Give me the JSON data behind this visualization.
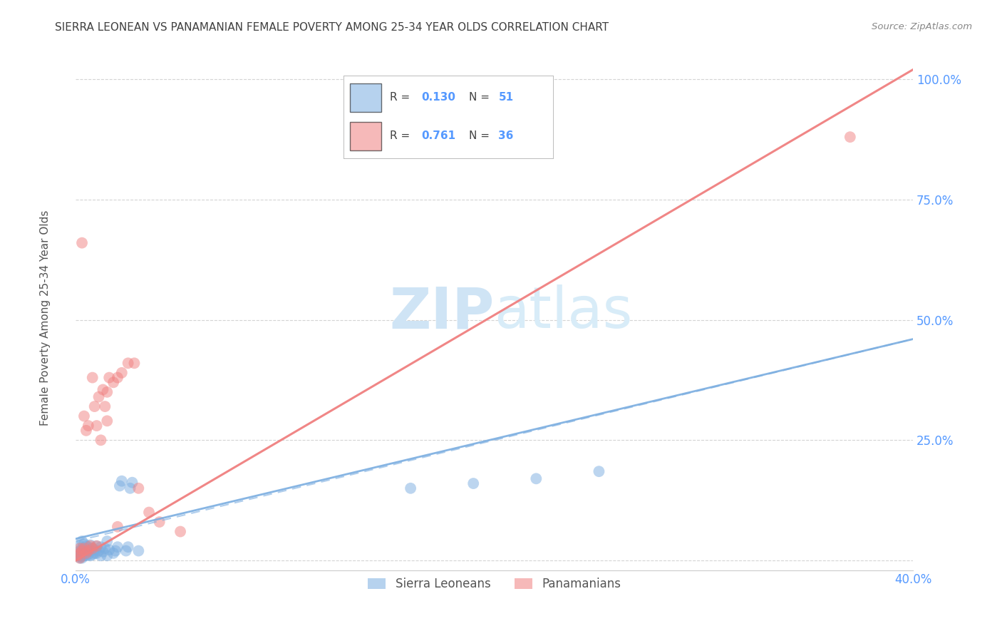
{
  "title": "SIERRA LEONEAN VS PANAMANIAN FEMALE POVERTY AMONG 25-34 YEAR OLDS CORRELATION CHART",
  "source": "Source: ZipAtlas.com",
  "ylabel": "Female Poverty Among 25-34 Year Olds",
  "xlim": [
    0.0,
    0.4
  ],
  "ylim": [
    -0.02,
    1.05
  ],
  "x_ticks": [
    0.0,
    0.1,
    0.2,
    0.3,
    0.4
  ],
  "x_tick_labels": [
    "0.0%",
    "",
    "",
    "",
    "40.0%"
  ],
  "y_ticks": [
    0.0,
    0.25,
    0.5,
    0.75,
    1.0
  ],
  "y_tick_labels": [
    "",
    "25.0%",
    "50.0%",
    "75.0%",
    "100.0%"
  ],
  "background_color": "#ffffff",
  "grid_color": "#d0d0d0",
  "blue_color": "#7aade0",
  "pink_color": "#f08080",
  "axis_label_color": "#5599ff",
  "title_color": "#404040",
  "watermark_zip_color": "#cde0f5",
  "watermark_atlas_color": "#d8e8f8",
  "sl_x": [
    0.001,
    0.002,
    0.002,
    0.002,
    0.002,
    0.002,
    0.003,
    0.003,
    0.003,
    0.003,
    0.003,
    0.003,
    0.004,
    0.004,
    0.004,
    0.005,
    0.005,
    0.005,
    0.006,
    0.006,
    0.007,
    0.007,
    0.007,
    0.008,
    0.008,
    0.009,
    0.009,
    0.01,
    0.01,
    0.011,
    0.012,
    0.012,
    0.013,
    0.014,
    0.015,
    0.015,
    0.016,
    0.018,
    0.019,
    0.02,
    0.021,
    0.022,
    0.024,
    0.025,
    0.026,
    0.027,
    0.03,
    0.16,
    0.19,
    0.22,
    0.25
  ],
  "sl_y": [
    0.01,
    0.005,
    0.008,
    0.012,
    0.02,
    0.03,
    0.005,
    0.008,
    0.015,
    0.02,
    0.025,
    0.04,
    0.01,
    0.02,
    0.035,
    0.01,
    0.018,
    0.03,
    0.012,
    0.028,
    0.01,
    0.02,
    0.032,
    0.012,
    0.025,
    0.015,
    0.022,
    0.015,
    0.03,
    0.02,
    0.01,
    0.028,
    0.018,
    0.025,
    0.01,
    0.04,
    0.022,
    0.015,
    0.02,
    0.028,
    0.155,
    0.165,
    0.02,
    0.028,
    0.15,
    0.162,
    0.02,
    0.15,
    0.16,
    0.17,
    0.185
  ],
  "pan_x": [
    0.001,
    0.002,
    0.002,
    0.003,
    0.004,
    0.004,
    0.005,
    0.005,
    0.006,
    0.007,
    0.008,
    0.009,
    0.01,
    0.011,
    0.012,
    0.013,
    0.014,
    0.015,
    0.016,
    0.018,
    0.02,
    0.022,
    0.025,
    0.028,
    0.03,
    0.035,
    0.04,
    0.05,
    0.002,
    0.003,
    0.006,
    0.008,
    0.01,
    0.015,
    0.02,
    0.37
  ],
  "pan_y": [
    0.01,
    0.015,
    0.025,
    0.02,
    0.025,
    0.3,
    0.015,
    0.27,
    0.02,
    0.03,
    0.025,
    0.32,
    0.03,
    0.34,
    0.25,
    0.355,
    0.32,
    0.35,
    0.38,
    0.37,
    0.38,
    0.39,
    0.41,
    0.41,
    0.15,
    0.1,
    0.08,
    0.06,
    0.005,
    0.66,
    0.28,
    0.38,
    0.28,
    0.29,
    0.07,
    0.88
  ],
  "sl_trend_x": [
    0.0,
    0.4
  ],
  "sl_trend_y": [
    0.045,
    0.46
  ],
  "pan_trend_x": [
    0.0,
    0.4
  ],
  "pan_trend_y": [
    0.0,
    1.02
  ]
}
